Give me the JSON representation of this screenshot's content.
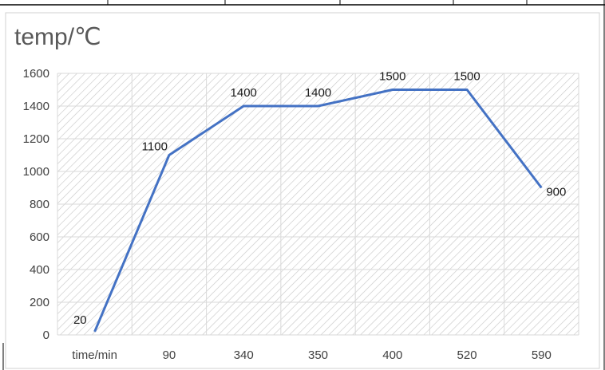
{
  "chart_data": {
    "type": "line",
    "title": "temp/℃",
    "categories": [
      "time/min",
      "90",
      "340",
      "350",
      "400",
      "520",
      "590"
    ],
    "series": [
      {
        "values": [
          20,
          1100,
          1400,
          1400,
          1500,
          1500,
          900
        ]
      }
    ],
    "data_labels": [
      "20",
      "1100",
      "1400",
      "1400",
      "1500",
      "1500",
      "900"
    ],
    "y_ticks": [
      "0",
      "200",
      "400",
      "600",
      "800",
      "1000",
      "1200",
      "1400",
      "1600"
    ],
    "ylim": [
      0,
      1600
    ],
    "grid": true,
    "legend": "none",
    "colors": {
      "line": "#4472c4",
      "hatch": "#c9c9c9",
      "grid": "#d9d9d9",
      "text": "#404040",
      "title": "#595959"
    }
  }
}
